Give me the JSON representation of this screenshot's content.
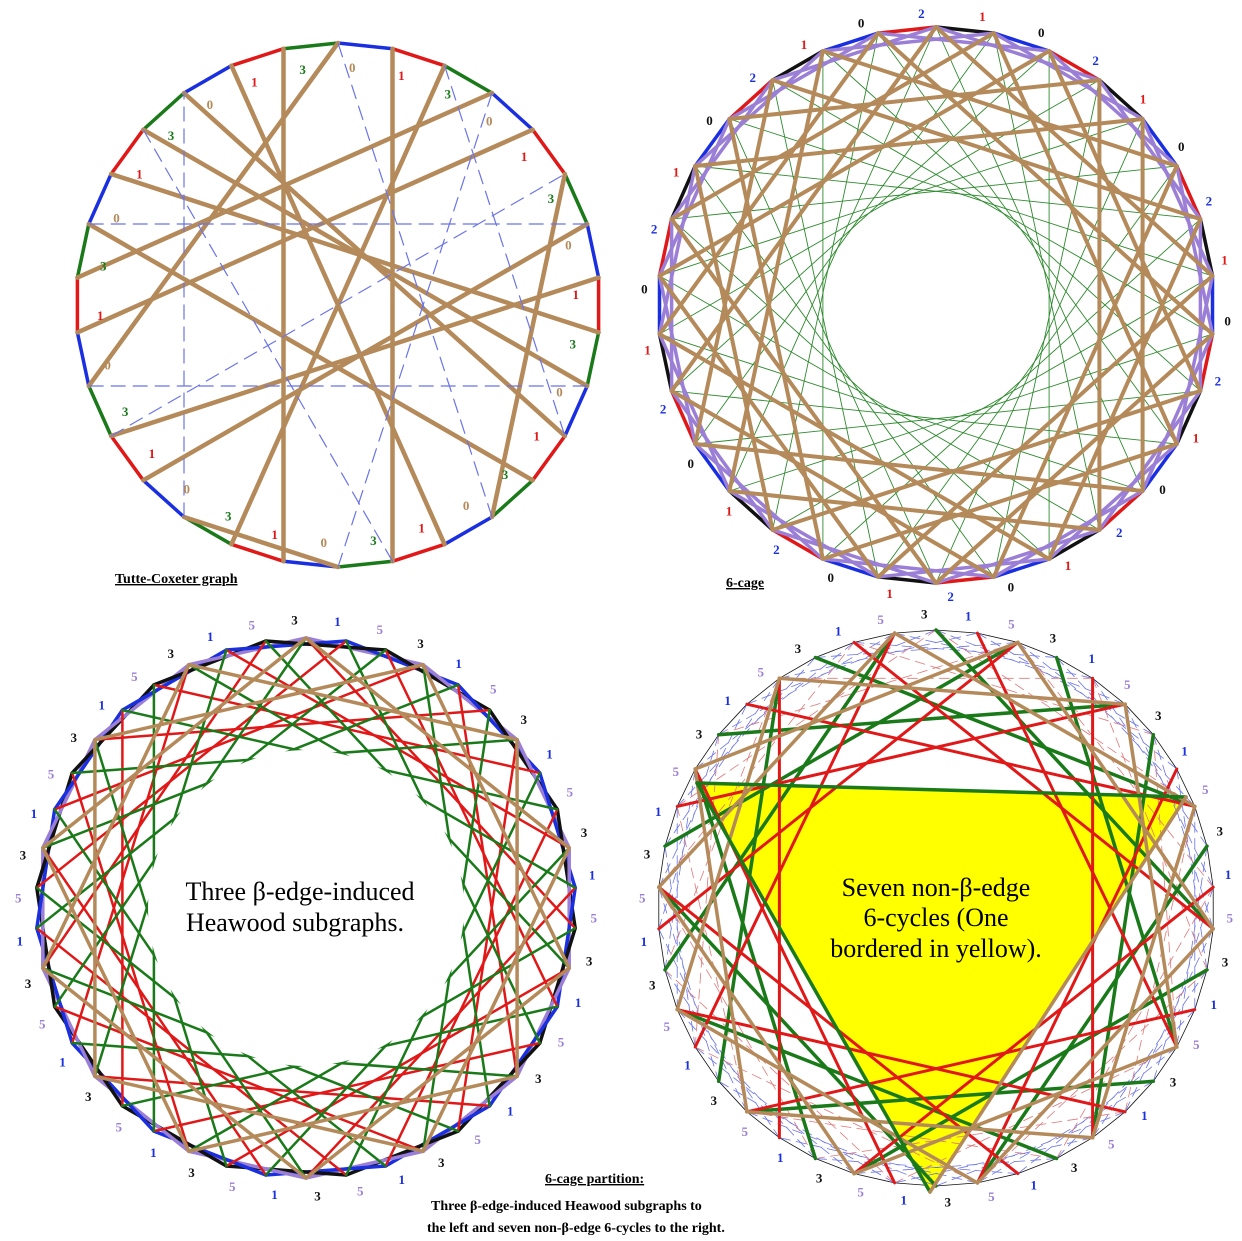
{
  "colors": {
    "brown": "#b58a5a",
    "purple": "#9b7fd6",
    "blue": "#1a2fe0",
    "red": "#e01818",
    "green": "#1a7a1a",
    "black": "#111111",
    "yellow": "#ffff00",
    "thin_green": "#2e8a2e",
    "dashed_blue": "#6a74e8"
  },
  "diagrams": {
    "tutte": {
      "caption": "Tutte-Coxeter graph",
      "labels": [
        "0",
        "1",
        "3",
        "0",
        "1",
        "3",
        "0",
        "1",
        "3",
        "0",
        "1",
        "3",
        "0",
        "1",
        "3",
        "0",
        "1",
        "3",
        "0",
        "1",
        "3",
        "0",
        "1",
        "3",
        "0",
        "1",
        "3",
        "0",
        "1",
        "3"
      ]
    },
    "cage6": {
      "caption": "6-cage",
      "labels": [
        "2",
        "1",
        "0",
        "2",
        "1",
        "0",
        "2",
        "1",
        "0",
        "2",
        "1",
        "0",
        "2",
        "1",
        "0",
        "2",
        "1",
        "0",
        "2",
        "1",
        "0",
        "2",
        "1",
        "0",
        "2",
        "1",
        "0",
        "2",
        "1",
        "0"
      ]
    },
    "heawood": {
      "text": [
        "Three β-edge-induced",
        "Heawood subgraphs."
      ],
      "labels": [
        "3",
        "1",
        "5",
        "3",
        "1",
        "5",
        "3",
        "1",
        "5",
        "3",
        "1",
        "5",
        "3",
        "1",
        "5",
        "3",
        "1",
        "5",
        "3",
        "1",
        "5",
        "3",
        "1",
        "5",
        "3",
        "1",
        "5",
        "3",
        "1",
        "5",
        "3",
        "1",
        "5",
        "3",
        "1",
        "5",
        "3",
        "1",
        "5",
        "3",
        "1",
        "5"
      ]
    },
    "cycles": {
      "text": [
        "Seven non-β-edge",
        "6-cycles (One",
        "bordered in yellow)."
      ],
      "labels": [
        "3",
        "1",
        "5",
        "3",
        "1",
        "5",
        "3",
        "1",
        "5",
        "3",
        "1",
        "5",
        "3",
        "1",
        "5",
        "3",
        "1",
        "5",
        "3",
        "1",
        "5",
        "3",
        "1",
        "5",
        "3",
        "1",
        "5",
        "3",
        "1",
        "5",
        "3",
        "1",
        "5",
        "3",
        "1",
        "5",
        "3",
        "1",
        "5",
        "3",
        "1",
        "5"
      ]
    }
  },
  "footer": {
    "title": "6-cage partition:",
    "line1": "Three β-edge-induced Heawood subgraphs to",
    "line2": "the left and seven non-β-edge 6-cycles to the right."
  }
}
